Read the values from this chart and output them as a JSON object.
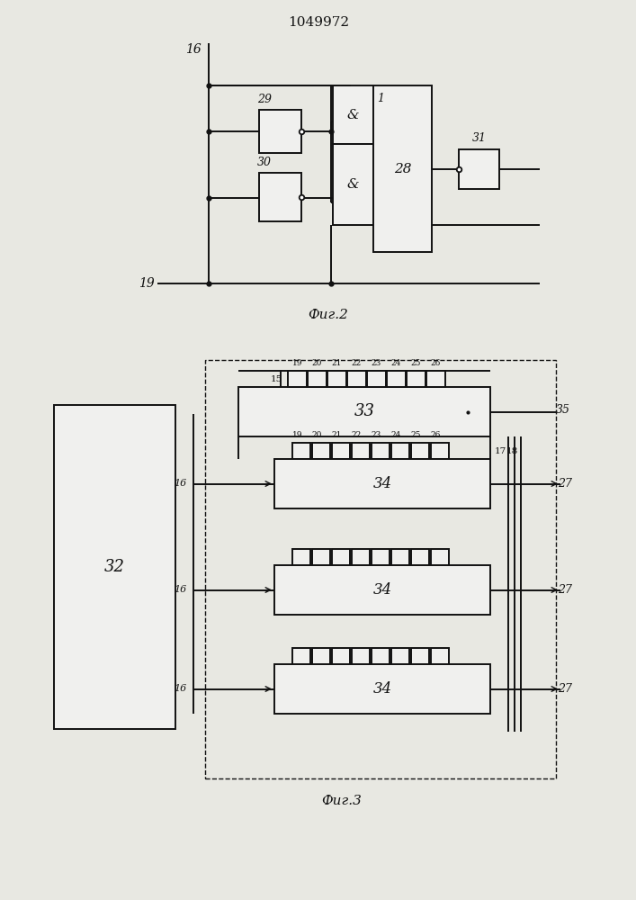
{
  "title": "1049972",
  "fig2_caption": "Фиг.2",
  "fig3_caption": "Фиг.3",
  "bg_color": "#e8e8e2",
  "line_color": "#111111",
  "box_fill": "#f0f0ee",
  "lw": 1.4
}
